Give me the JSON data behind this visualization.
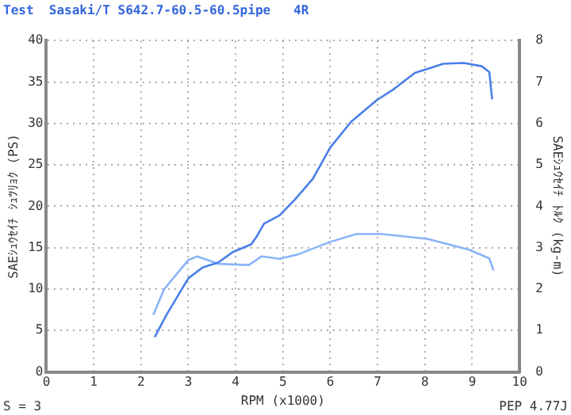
{
  "chart_data": {
    "type": "line",
    "title": "Test  Sasaki/T S642.7-60.5-60.5pipe   4R",
    "xlabel": "RPM (x1000)",
    "ylabel": "SAEｼｭｳｾｲﾁ ｼｭﾂﾘｮｸ (PS)",
    "y2label": "SAEｼｭｳｾｲﾁ ﾄﾙｸ (kg-m)",
    "annotations": [
      "S = 3",
      "PEP 4.77J"
    ],
    "series": [
      {
        "color": "#4a7fe8",
        "x": [
          2.29,
          2.54,
          3.0,
          3.3,
          3.63,
          3.95,
          4.33,
          4.44,
          4.6,
          4.93,
          5.25,
          5.63,
          6.0,
          6.44,
          6.98,
          7.31,
          7.79,
          8.39,
          8.82,
          9.2,
          9.36,
          9.42
        ],
        "values": [
          4.2,
          6.9,
          11.3,
          12.6,
          13.2,
          14.5,
          15.4,
          16.3,
          17.9,
          18.9,
          20.8,
          23.3,
          27.1,
          30.2,
          32.8,
          34.0,
          36.1,
          37.2,
          37.3,
          36.9,
          36.2,
          32.9
        ]
      },
      {
        "color": "#8ab4f8",
        "axis": "y2",
        "x": [
          2.26,
          2.49,
          3.0,
          3.19,
          3.63,
          4.28,
          4.55,
          4.93,
          5.3,
          6.0,
          6.55,
          7.09,
          8.06,
          8.93,
          9.36,
          9.45
        ],
        "values": [
          1.38,
          2.0,
          2.7,
          2.79,
          2.61,
          2.58,
          2.79,
          2.73,
          2.83,
          3.14,
          3.33,
          3.33,
          3.21,
          2.95,
          2.74,
          2.45
        ]
      }
    ],
    "xlim": [
      0,
      10
    ],
    "xticks": [
      0,
      1,
      2,
      3,
      4,
      5,
      6,
      7,
      8,
      9,
      10
    ],
    "ylim": [
      0,
      40
    ],
    "yticks": [
      0,
      5,
      10,
      15,
      20,
      25,
      30,
      35,
      40
    ],
    "y2lim": [
      0,
      8
    ],
    "y2ticks": [
      0,
      1,
      2,
      3,
      4,
      5,
      6,
      7,
      8
    ],
    "grid": true,
    "legend": false,
    "marker": "none",
    "line_style": "solid"
  }
}
